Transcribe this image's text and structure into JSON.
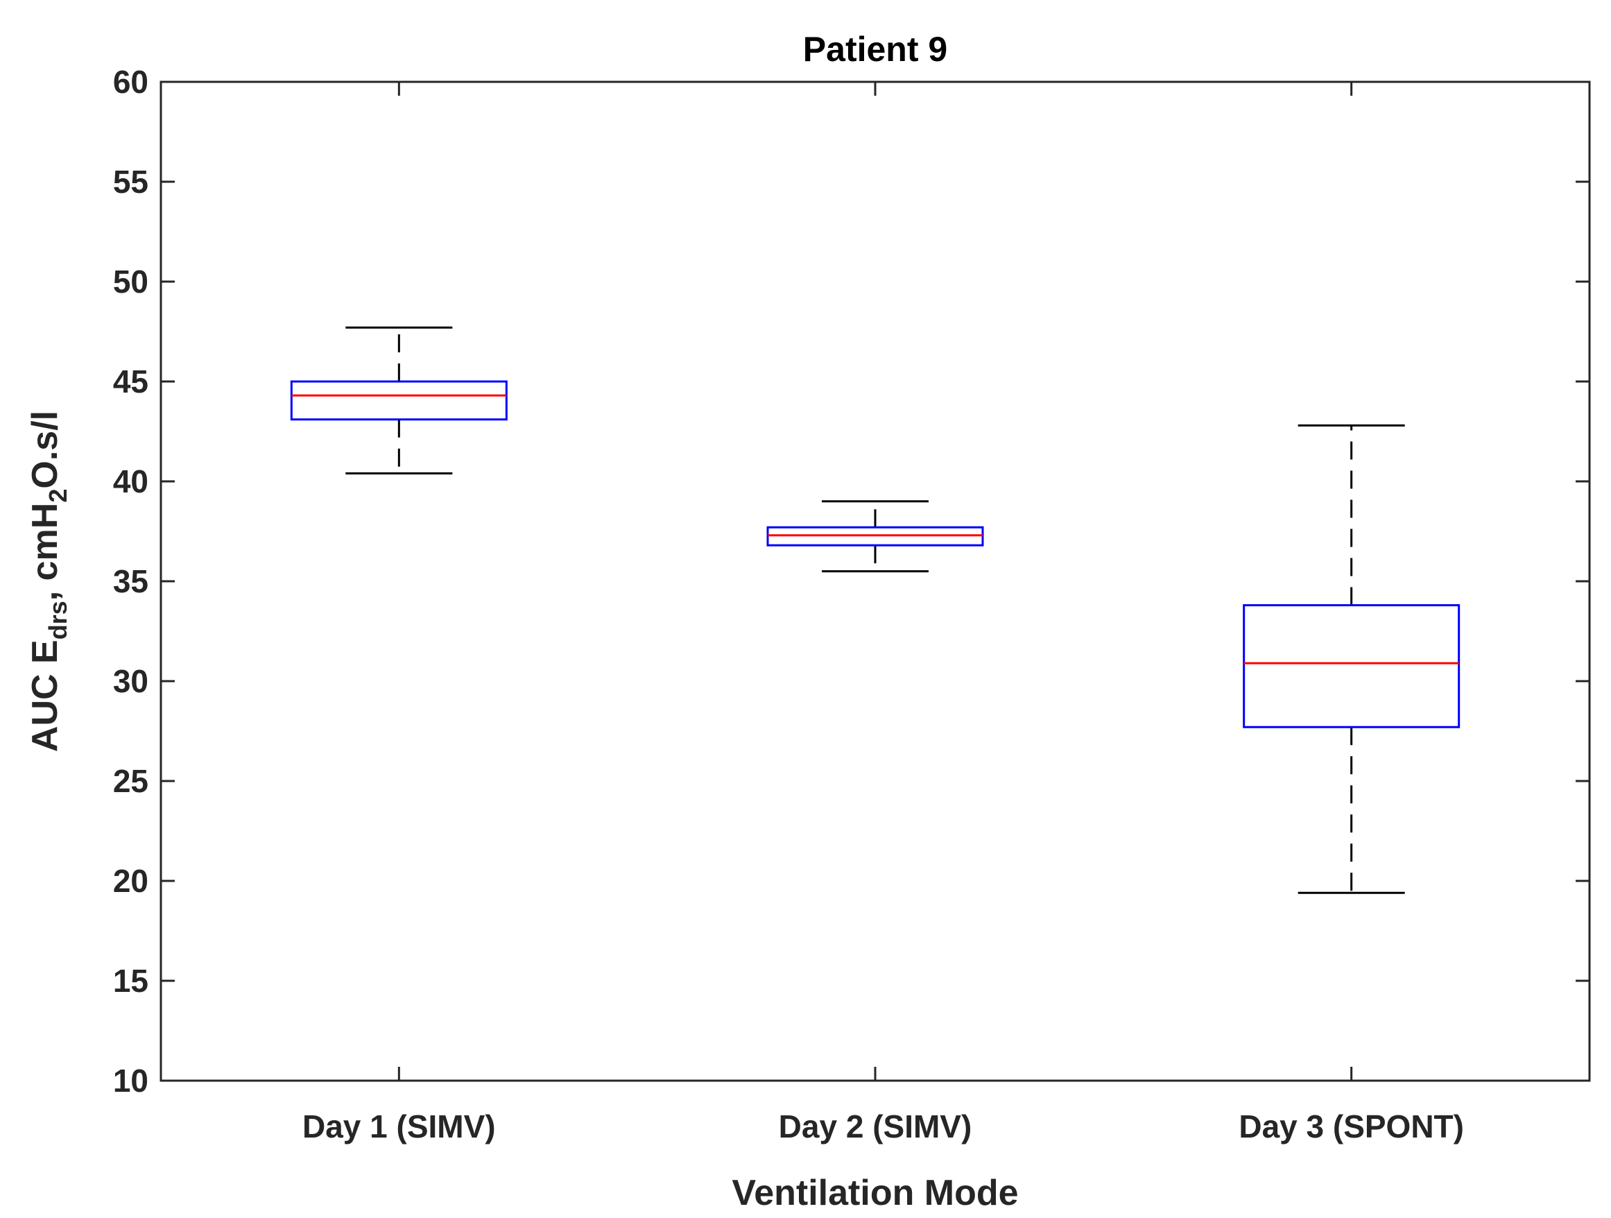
{
  "chart_data": {
    "type": "box",
    "title": "Patient 9",
    "xlabel": "Ventilation Mode",
    "ylabel": {
      "prefix": "AUC E",
      "subscript1": "drs",
      "middle": ", cmH",
      "subscript2": "2",
      "suffix": "O.s/l"
    },
    "ylim": [
      10,
      60
    ],
    "yticks": [
      10,
      15,
      20,
      25,
      30,
      35,
      40,
      45,
      50,
      55,
      60
    ],
    "grid": false,
    "categories": [
      "Day 1 (SIMV)",
      "Day 2 (SIMV)",
      "Day 3 (SPONT)"
    ],
    "boxes": [
      {
        "category": "Day 1 (SIMV)",
        "whisker_low": 40.4,
        "q1": 43.1,
        "median": 44.3,
        "q3": 45.0,
        "whisker_high": 47.7
      },
      {
        "category": "Day 2 (SIMV)",
        "whisker_low": 35.5,
        "q1": 36.8,
        "median": 37.3,
        "q3": 37.7,
        "whisker_high": 39.0
      },
      {
        "category": "Day 3 (SPONT)",
        "whisker_low": 19.4,
        "q1": 27.7,
        "median": 30.9,
        "q3": 33.8,
        "whisker_high": 42.8
      }
    ],
    "colors": {
      "box": "#0000ff",
      "median": "#ff0000",
      "whisker": "#000000",
      "axis": "#262626"
    }
  }
}
